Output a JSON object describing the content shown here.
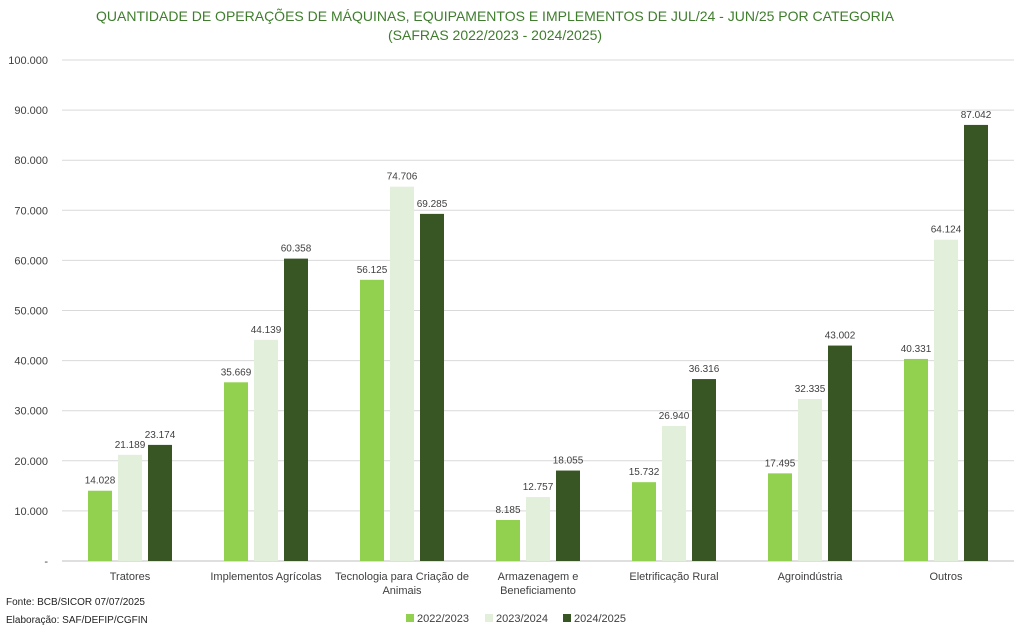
{
  "chart_data": {
    "type": "bar",
    "title": "QUANTIDADE DE OPERAÇÕES DE MÁQUINAS, EQUIPAMENTOS E IMPLEMENTOS DE JUL/24 - JUN/25 POR CATEGORIA",
    "subtitle": "(SAFRAS 2022/2023 - 2024/2025)",
    "xlabel": "",
    "ylabel": "",
    "ylim": [
      0,
      100000
    ],
    "y_ticks": [
      "-",
      "10.000",
      "20.000",
      "30.000",
      "40.000",
      "50.000",
      "60.000",
      "70.000",
      "80.000",
      "90.000",
      "100.000"
    ],
    "categories": [
      [
        "Tratores"
      ],
      [
        "Implementos Agrícolas"
      ],
      [
        "Tecnologia para Criação de",
        "Animais"
      ],
      [
        "Armazenagem e",
        "Beneficiamento"
      ],
      [
        "Eletrificação Rural"
      ],
      [
        "Agroindústria"
      ],
      [
        "Outros"
      ]
    ],
    "series": [
      {
        "name": "2022/2023",
        "color": "#92d050",
        "values": [
          14028,
          35669,
          56125,
          8185,
          15732,
          17495,
          40331
        ],
        "labels": [
          "14.028",
          "35.669",
          "56.125",
          "8.185",
          "15.732",
          "17.495",
          "40.331"
        ]
      },
      {
        "name": "2023/2024",
        "color": "#e2efda",
        "values": [
          21189,
          44139,
          74706,
          12757,
          26940,
          32335,
          64124
        ],
        "labels": [
          "21.189",
          "44.139",
          "74.706",
          "12.757",
          "26.940",
          "32.335",
          "64.124"
        ]
      },
      {
        "name": "2024/2025",
        "color": "#375623",
        "values": [
          23174,
          60358,
          69285,
          18055,
          36316,
          43002,
          87042
        ],
        "labels": [
          "23.174",
          "60.358",
          "69.285",
          "18.055",
          "36.316",
          "43.002",
          "87.042"
        ]
      }
    ],
    "legend_position": "bottom",
    "grid": true
  },
  "footer": {
    "source": "Fonte: BCB/SICOR  07/07/2025",
    "credit": "Elaboração: SAF/DEFIP/CGFIN"
  }
}
